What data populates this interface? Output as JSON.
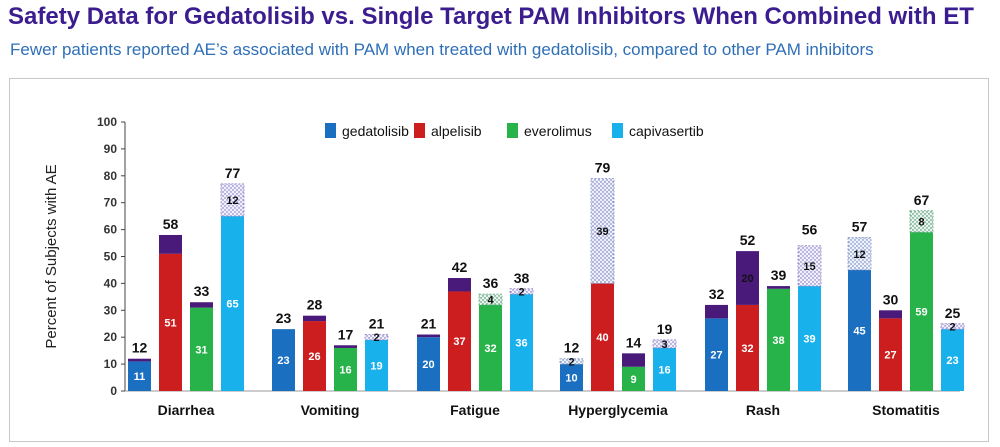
{
  "title": "Safety Data for Gedatolisib vs. Single Target PAM Inhibitors When Combined with ET",
  "subtitle": "Fewer patients reported AE’s associated with PAM when treated with gedatolisib, compared to other PAM inhibitors",
  "chart_data": {
    "type": "bar",
    "stacked": true,
    "ylabel": "Percent of Subjects with AE",
    "xlabel": "",
    "ylim": [
      0,
      100
    ],
    "yticks": [
      0,
      10,
      20,
      30,
      40,
      50,
      60,
      70,
      80,
      90,
      100
    ],
    "grid": false,
    "legend_position": "top",
    "categories": [
      "Diarrhea",
      "Vomiting",
      "Fatigue",
      "Hyperglycemia",
      "Rash",
      "Stomatitis"
    ],
    "series": [
      {
        "name": "gedatolisib",
        "color": "#1a6fc0",
        "base": [
          11,
          23,
          20,
          10,
          27,
          45
        ],
        "extra": [
          1,
          0,
          1,
          2,
          5,
          12
        ],
        "extra_labels": [
          "",
          "",
          "",
          "2",
          "",
          "12"
        ],
        "extra_style": [
          "solid",
          "solid",
          "solid",
          "dotted",
          "solid",
          "dotted"
        ],
        "totals": [
          12,
          23,
          21,
          12,
          32,
          57
        ]
      },
      {
        "name": "alpelisib",
        "color": "#cc1e1e",
        "base": [
          51,
          26,
          37,
          40,
          32,
          27
        ],
        "extra": [
          7,
          2,
          5,
          39,
          20,
          3
        ],
        "extra_labels": [
          "",
          "",
          "",
          "39",
          "20",
          ""
        ],
        "extra_style": [
          "solid",
          "solid",
          "solid",
          "dotted",
          "solid",
          "solid"
        ],
        "totals": [
          58,
          28,
          42,
          79,
          52,
          30
        ]
      },
      {
        "name": "everolimus",
        "color": "#27b34a",
        "base": [
          31,
          16,
          32,
          9,
          38,
          59
        ],
        "extra": [
          2,
          1,
          4,
          5,
          1,
          8
        ],
        "extra_labels": [
          "",
          "",
          "4",
          "",
          "",
          "8"
        ],
        "extra_style": [
          "solid",
          "solid",
          "dotted",
          "solid",
          "solid",
          "dotted"
        ],
        "totals": [
          33,
          17,
          36,
          14,
          39,
          67
        ]
      },
      {
        "name": "capivasertib",
        "color": "#19b1ec",
        "base": [
          65,
          19,
          36,
          16,
          39,
          23
        ],
        "extra": [
          12,
          2,
          2,
          3,
          15,
          2
        ],
        "extra_labels": [
          "12",
          "2",
          "2",
          "3",
          "15",
          "2"
        ],
        "extra_style": [
          "dotted",
          "dotted",
          "dotted",
          "dotted",
          "dotted",
          "dotted"
        ],
        "totals": [
          77,
          21,
          38,
          19,
          56,
          25
        ]
      }
    ],
    "grade3_color": "#4a1a7a"
  }
}
